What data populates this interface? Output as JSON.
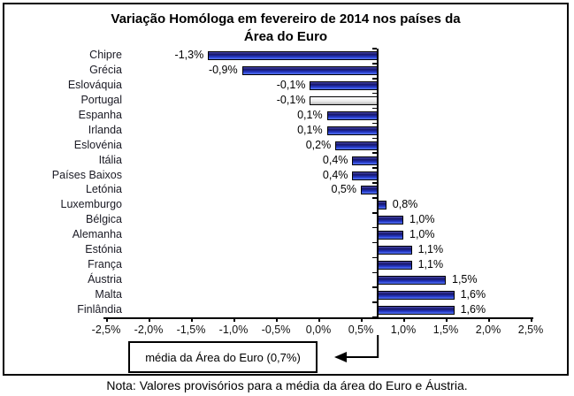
{
  "title_line1": "Variação Homóloga em fevereiro de 2014 nos países da",
  "title_line2": "Área do Euro",
  "mean_box_label": "média da Área do Euro (0,7%)",
  "note": "Nota: Valores provisórios para a média da área do Euro e Áustria.",
  "colors": {
    "bar_outline": "#000000",
    "bar_blue_edge": "#4a4ab0",
    "bar_blue_dark": "#161668",
    "bar_blue_mid": "#2438c8",
    "bar_blue_bright": "#5a78f2",
    "bar_gray_top": "#ffffff",
    "bar_gray_mid": "#ececec",
    "bar_gray_bottom": "#b8b8b8",
    "axis_color": "#000000"
  },
  "chart_data": {
    "type": "bar",
    "orientation": "horizontal",
    "title": "Variação Homóloga em fevereiro de 2014 nos países da Área do Euro",
    "categories": [
      "Chipre",
      "Grécia",
      "Eslováquia",
      "Portugal",
      "Espanha",
      "Irlanda",
      "Eslovénia",
      "Itália",
      "Países Baixos",
      "Letónia",
      "Luxemburgo",
      "Bélgica",
      "Alemanha",
      "Estónia",
      "França",
      "Áustria",
      "Malta",
      "Finlândia"
    ],
    "values": [
      -1.3,
      -0.9,
      -0.1,
      -0.1,
      0.1,
      0.1,
      0.2,
      0.4,
      0.4,
      0.5,
      0.8,
      1.0,
      1.0,
      1.1,
      1.1,
      1.5,
      1.6,
      1.6
    ],
    "value_labels": [
      "-1,3%",
      "-0,9%",
      "-0,1%",
      "-0,1%",
      "0,1%",
      "0,1%",
      "0,2%",
      "0,4%",
      "0,4%",
      "0,5%",
      "0,8%",
      "1,0%",
      "1,0%",
      "1,1%",
      "1,1%",
      "1,5%",
      "1,6%",
      "1,6%"
    ],
    "baseline": 0.7,
    "baseline_label": "média da Área do Euro (0,7%)",
    "highlight_category": "Portugal",
    "xlim": [
      -2.5,
      2.5
    ],
    "x_ticks": [
      {
        "value": -2.5,
        "label": "-2,5%"
      },
      {
        "value": -2.0,
        "label": "-2,0%"
      },
      {
        "value": -1.5,
        "label": "-1,5%"
      },
      {
        "value": -1.0,
        "label": "-1,0%"
      },
      {
        "value": -0.5,
        "label": "-0,5%"
      },
      {
        "value": 0.0,
        "label": "0,0%"
      },
      {
        "value": 0.5,
        "label": "0,5%"
      },
      {
        "value": 1.0,
        "label": "1,0%"
      },
      {
        "value": 1.5,
        "label": "1,5%"
      },
      {
        "value": 2.0,
        "label": "2,0%"
      },
      {
        "value": 2.5,
        "label": "2,5%"
      }
    ],
    "grid": false,
    "legend": false,
    "note": "Nota: Valores provisórios para a média da área do Euro e Áustria."
  }
}
